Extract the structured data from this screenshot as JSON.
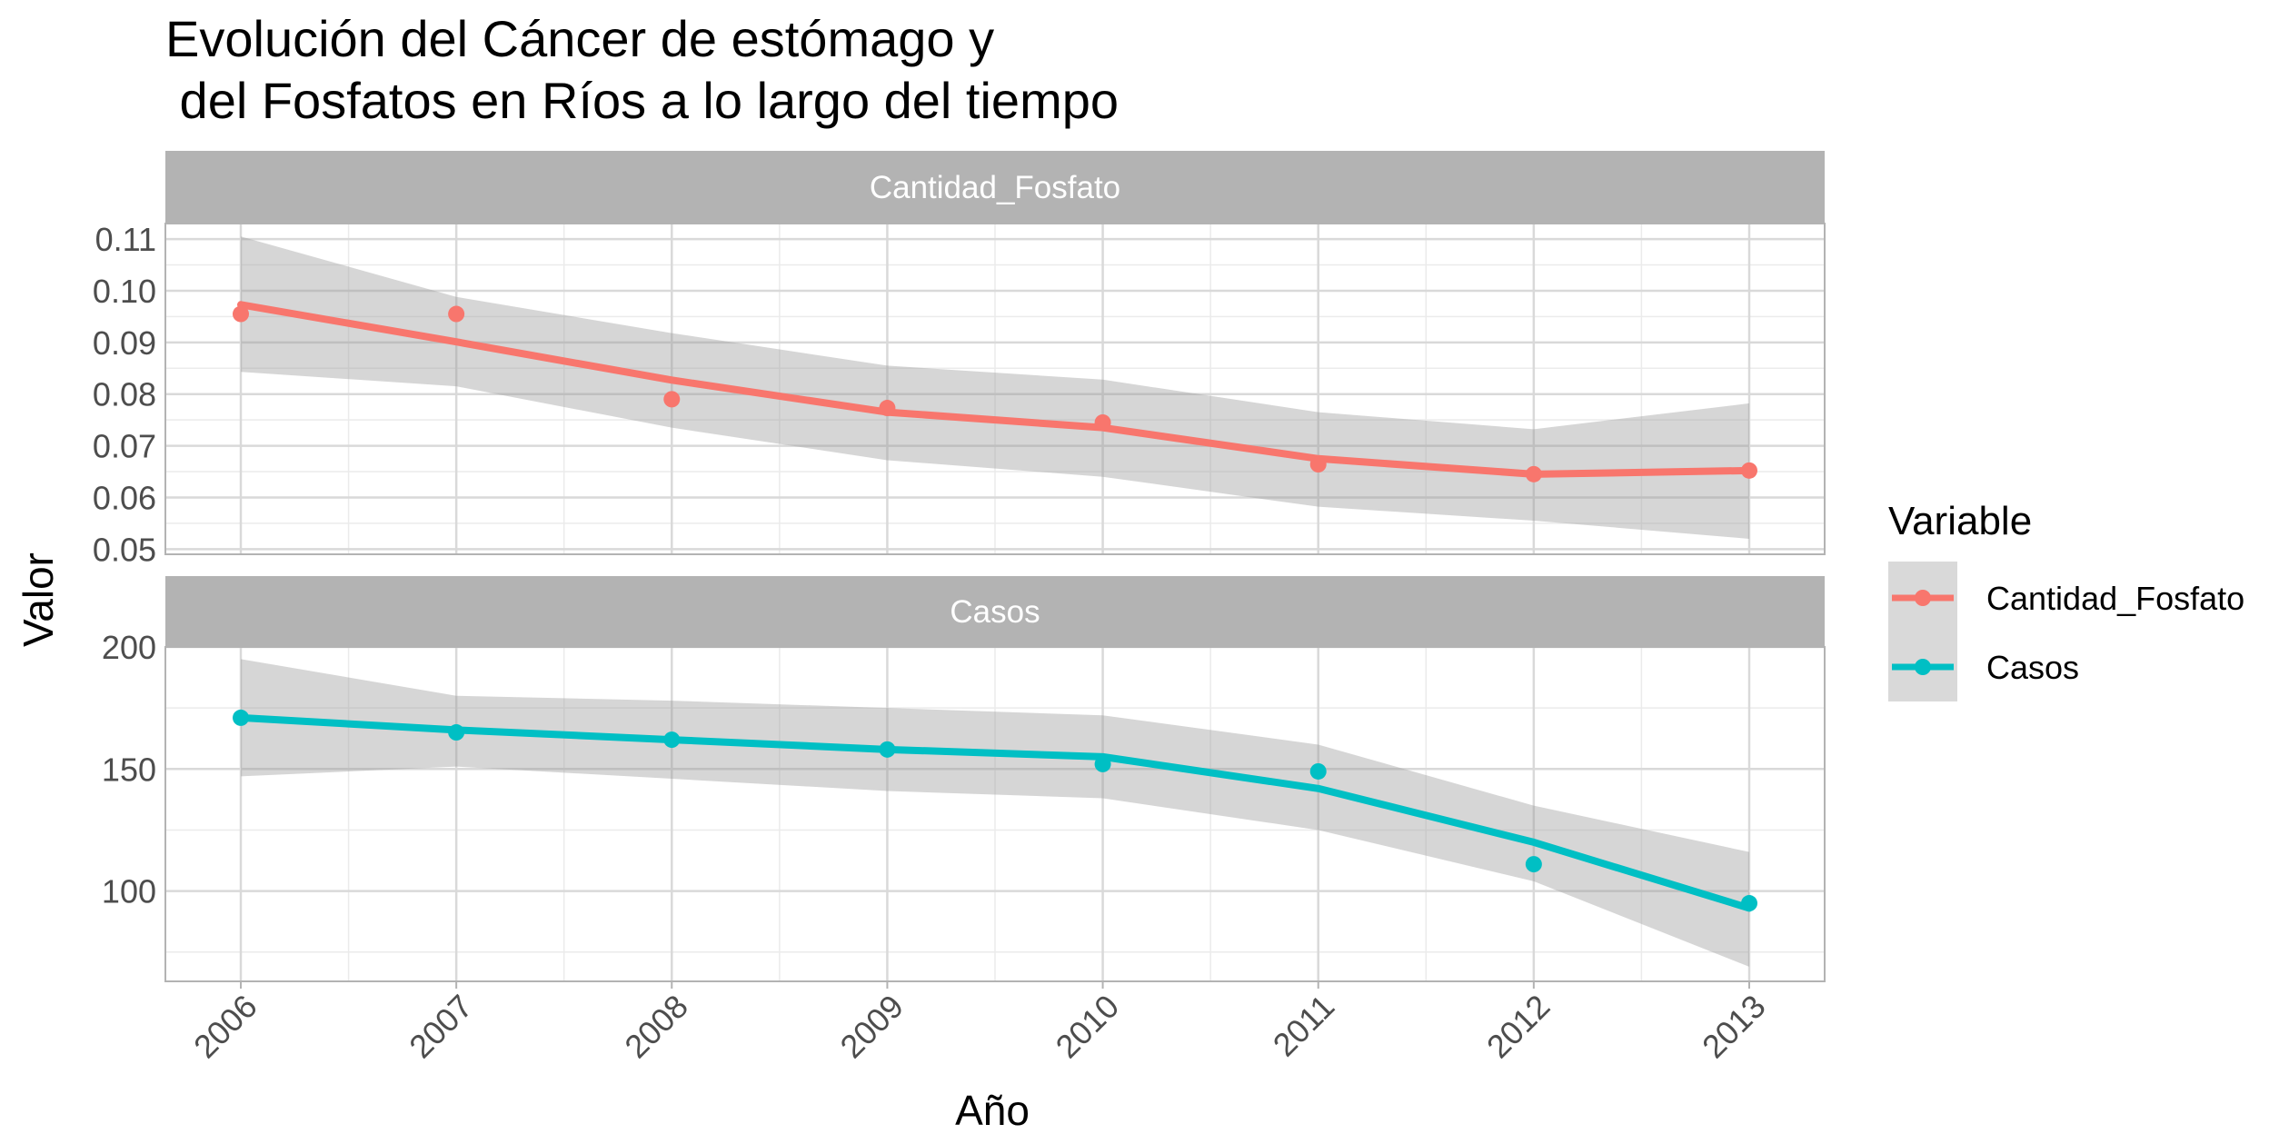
{
  "chart_data": {
    "type": "line",
    "title_line1": "Evolución del Cáncer de estómago y",
    "title_line2": " del Fosfatos en Ríos a lo largo del tiempo",
    "xlabel": "Año",
    "ylabel": "Valor",
    "x_ticks": [
      "2006",
      "2007",
      "2008",
      "2009",
      "2010",
      "2011",
      "2012",
      "2013"
    ],
    "grid": true,
    "legend": {
      "title": "Variable",
      "placement": "right",
      "items": [
        "Cantidad_Fosfato",
        "Casos"
      ]
    },
    "facets": [
      {
        "strip": "Cantidad_Fosfato",
        "color": "#F8766D",
        "ylim": [
          0.049,
          0.113
        ],
        "y_ticks": [
          "0.05",
          "0.06",
          "0.07",
          "0.08",
          "0.09",
          "0.10",
          "0.11"
        ],
        "x": [
          2006,
          2007,
          2008,
          2009,
          2010,
          2011,
          2012,
          2013
        ],
        "points": [
          0.0955,
          0.0955,
          0.079,
          0.0773,
          0.0745,
          0.0664,
          0.0645,
          0.0652
        ],
        "smooth": [
          0.0973,
          0.0901,
          0.0827,
          0.0765,
          0.0735,
          0.0675,
          0.0645,
          0.0652
        ],
        "band_upper": [
          0.1105,
          0.0988,
          0.0918,
          0.0855,
          0.0828,
          0.0765,
          0.0732,
          0.0782
        ],
        "band_lower": [
          0.0843,
          0.0815,
          0.0735,
          0.0672,
          0.064,
          0.0582,
          0.0555,
          0.052
        ]
      },
      {
        "strip": "Casos",
        "color": "#00BFC4",
        "ylim": [
          63,
          200
        ],
        "y_ticks": [
          "100",
          "150",
          "200"
        ],
        "x": [
          2006,
          2007,
          2008,
          2009,
          2010,
          2011,
          2012,
          2013
        ],
        "points": [
          171,
          165,
          162,
          158,
          152,
          149,
          111,
          95
        ],
        "smooth": [
          171,
          166,
          162,
          158,
          155,
          142,
          120,
          93
        ],
        "band_upper": [
          195,
          180,
          178,
          175,
          172,
          160,
          135,
          116
        ],
        "band_lower": [
          147,
          151,
          146,
          141,
          138,
          125,
          104,
          69
        ]
      }
    ]
  }
}
